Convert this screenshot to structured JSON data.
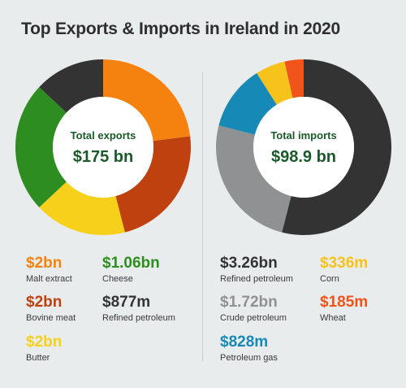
{
  "title": "Top Exports & Imports in Ireland in 2020",
  "chart_data": [
    {
      "type": "pie",
      "center_label": "Total exports",
      "center_value": "$175 bn",
      "slices": [
        {
          "name": "Orange",
          "value": 23,
          "color": "#f5820f"
        },
        {
          "name": "Dark orange",
          "value": 23,
          "color": "#bf4110"
        },
        {
          "name": "Yellow",
          "value": 17,
          "color": "#f7d01b"
        },
        {
          "name": "Green",
          "value": 24,
          "color": "#2e8d21"
        },
        {
          "name": "Dark grey",
          "value": 13,
          "color": "#333333"
        }
      ],
      "legend": [
        {
          "value": "$2bn",
          "label": "Malt extract",
          "color": "#f5820f"
        },
        {
          "value": "$1.06bn",
          "label": "Cheese",
          "color": "#2e8d21"
        },
        {
          "value": "$2bn",
          "label": "Bovine meat",
          "color": "#bf4110"
        },
        {
          "value": "$877m",
          "label": "Refined petroleum",
          "color": "#333333"
        },
        {
          "value": "$2bn",
          "label": "Butter",
          "color": "#f7d01b"
        }
      ]
    },
    {
      "type": "pie",
      "center_label": "Total imports",
      "center_value": "$98.9 bn",
      "slices": [
        {
          "name": "Dark grey",
          "value": 54,
          "color": "#333333"
        },
        {
          "name": "Light grey",
          "value": 25,
          "color": "#8f9192"
        },
        {
          "name": "Blue",
          "value": 12,
          "color": "#1789b6"
        },
        {
          "name": "Yellow",
          "value": 5.5,
          "color": "#f7c21c"
        },
        {
          "name": "Red orange",
          "value": 3.5,
          "color": "#f0541a"
        }
      ],
      "legend": [
        {
          "value": "$3.26bn",
          "label": "Refined petroleum",
          "color": "#333333"
        },
        {
          "value": "$336m",
          "label": "Corn",
          "color": "#f7c21c"
        },
        {
          "value": "$1.72bn",
          "label": "Crude petroleum",
          "color": "#8f9192"
        },
        {
          "value": "$185m",
          "label": "Wheat",
          "color": "#f0541a"
        },
        {
          "value": "$828m",
          "label": "Petroleum gas",
          "color": "#1789b6"
        }
      ]
    }
  ]
}
